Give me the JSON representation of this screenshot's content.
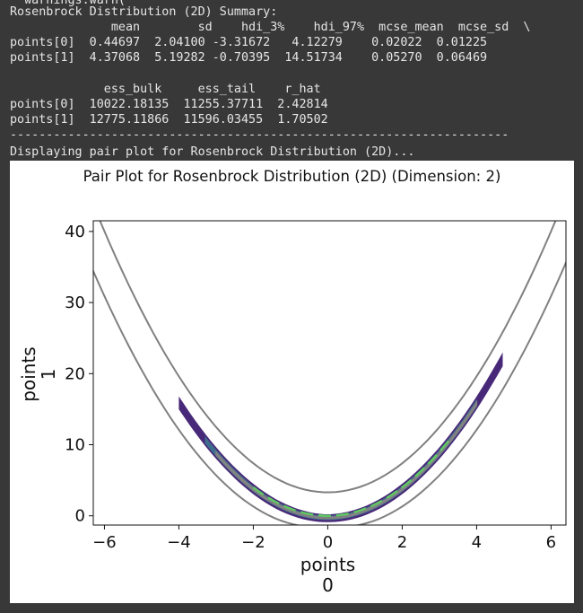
{
  "console": {
    "lines": [
      "  warnings.warn(",
      "Rosenbrock Distribution (2D) Summary:",
      "              mean        sd    hdi_3%    hdi_97%  mcse_mean  mcse_sd  \\",
      "points[0]  0.44697  2.04100 -3.31672   4.12279    0.02022  0.01225",
      "points[1]  4.37068  5.19282 -0.70395  14.51734    0.05270  0.06469",
      "",
      "             ess_bulk     ess_tail    r_hat",
      "points[0]  10022.18135  11255.37711  2.42814",
      "points[1]  12775.11866  11596.03455  1.70502",
      "---------------------------------------------------------------------",
      "Displaying pair plot for Rosenbrock Distribution (2D)..."
    ]
  },
  "plot": {
    "title": "Pair Plot for Rosenbrock Distribution (2D) (Dimension: 2)"
  },
  "chart_data": {
    "type": "contour",
    "title": "Pair Plot for Rosenbrock Distribution (2D) (Dimension: 2)",
    "xlabel_line1": "points",
    "xlabel_line2": "0",
    "ylabel_line1": "points",
    "ylabel_line2": "1",
    "xlim": [
      -6.3,
      6.4
    ],
    "ylim": [
      -1.3,
      41.5
    ],
    "xticks": [
      -6,
      -4,
      -2,
      0,
      2,
      4,
      6
    ],
    "yticks": [
      0,
      10,
      20,
      30,
      40
    ],
    "grid": false,
    "colors": {
      "outer_contour": "#808080",
      "kde_outer": "#482878",
      "kde_mid": "#3e6e8f",
      "kde_inner_fill": "#8a8a8a",
      "kde_core": "#5ec962"
    }
  }
}
